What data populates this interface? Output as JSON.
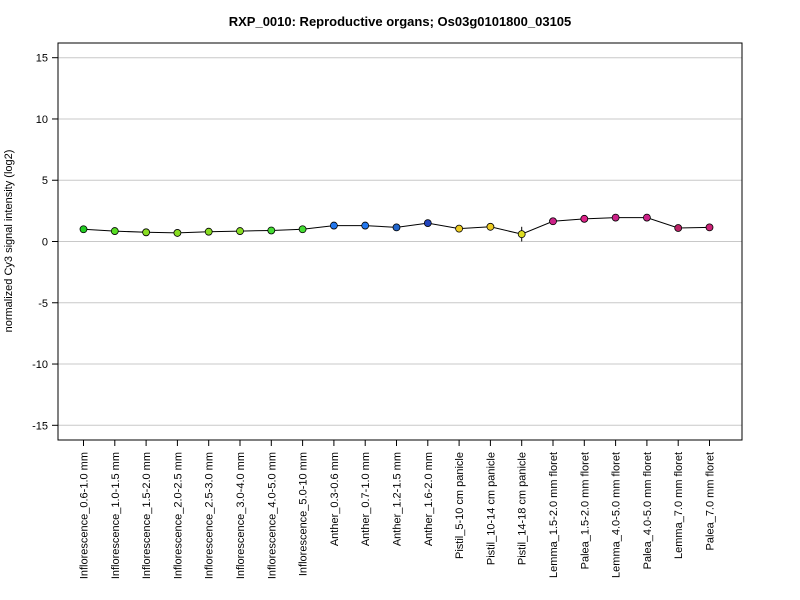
{
  "chart_data": {
    "type": "line",
    "title": "RXP_0010: Reproductive organs; Os03g0101800_03105",
    "xlabel": "",
    "ylabel": "normalized Cy3 signal intensity (log2)",
    "ylim": [
      -16.2,
      16.2
    ],
    "yticks": [
      -15,
      -10,
      -5,
      0,
      5,
      10,
      15
    ],
    "ytick_labels": [
      "-15",
      "-10",
      "-5",
      "0",
      "5",
      "10",
      "15"
    ],
    "grid": "horizontal",
    "categories": [
      "Inflorescence_0.6-1.0 mm",
      "Inflorescence_1.0-1.5 mm",
      "Inflorescence_1.5-2.0 mm",
      "Inflorescence_2.0-2.5 mm",
      "Inflorescence_2.5-3.0 mm",
      "Inflorescence_3.0-4.0 mm",
      "Inflorescence_4.0-5.0 mm",
      "Inflorescence_5.0-10 mm",
      "Anther_0.3-0.6 mm",
      "Anther_0.7-1.0 mm",
      "Anther_1.2-1.5 mm",
      "Anther_1.6-2.0 mm",
      "Pistil_5-10 cm panicle",
      "Pistil_10-14 cm panicle",
      "Pistil_14-18 cm panicle",
      "Lemma_1.5-2.0 mm floret",
      "Palea_1.5-2.0 mm floret",
      "Lemma_4.0-5.0 mm floret",
      "Palea_4.0-5.0 mm floret",
      "Lemma_7.0 mm floret",
      "Palea_7.0 mm floret"
    ],
    "series": [
      {
        "values": [
          1.0,
          0.85,
          0.75,
          0.7,
          0.8,
          0.85,
          0.9,
          1.0,
          1.3,
          1.3,
          1.15,
          1.5,
          1.05,
          1.2,
          0.6,
          1.65,
          1.85,
          1.95,
          1.95,
          1.1,
          1.15
        ],
        "errors": [
          0.1,
          0.1,
          0.1,
          0.1,
          0.1,
          0.1,
          0.1,
          0.1,
          0.1,
          0.1,
          0.1,
          0.1,
          0.3,
          0.15,
          0.6,
          0.3,
          0.1,
          0.2,
          0.3,
          0.1,
          0.1
        ],
        "colors": [
          "#22cc22",
          "#55dd22",
          "#88dd22",
          "#88dd22",
          "#88dd22",
          "#88dd22",
          "#44dd33",
          "#44dd33",
          "#2277ee",
          "#2277ee",
          "#2266cc",
          "#2244bb",
          "#eecc22",
          "#eecc22",
          "#dddd22",
          "#cc2288",
          "#dd2288",
          "#cc2288",
          "#cc2288",
          "#bb2266",
          "#cc2277"
        ]
      }
    ],
    "line_color": "#000000"
  }
}
